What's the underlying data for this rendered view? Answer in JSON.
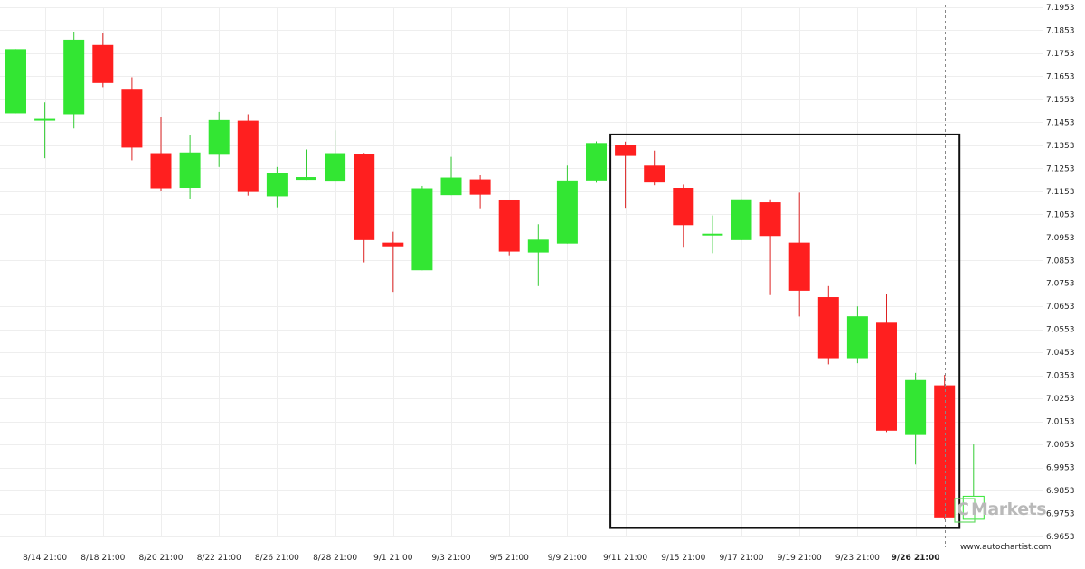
{
  "chart_data": {
    "type": "candlestick",
    "y_ticks": [
      "7.1953",
      "7.1853",
      "7.1753",
      "7.1653",
      "7.1553",
      "7.1453",
      "7.1353",
      "7.1253",
      "7.1153",
      "7.1053",
      "7.0953",
      "7.0853",
      "7.0753",
      "7.0653",
      "7.0553",
      "7.0453",
      "7.0353",
      "7.0253",
      "7.0153",
      "7.0053",
      "6.9953",
      "6.9853",
      "6.9753",
      "6.9653"
    ],
    "ylim": [
      6.9653,
      7.1953
    ],
    "x_tick_labels": [
      "8/14 21:00",
      "8/18 21:00",
      "8/20 21:00",
      "8/22 21:00",
      "8/26 21:00",
      "8/28 21:00",
      "9/1 21:00",
      "9/3 21:00",
      "9/5 21:00",
      "9/9 21:00",
      "9/11 21:00",
      "9/15 21:00",
      "9/17 21:00",
      "9/19 21:00",
      "9/23 21:00",
      "9/26 21:00"
    ],
    "highlighted_x_label": "9/26 21:00",
    "colors": {
      "up": "#33e633",
      "down": "#ff1f1f",
      "wick_up": "#33cc33",
      "wick_down": "#dd2222",
      "grid": "#eeeeee",
      "box": "#111111"
    },
    "candles": [
      {
        "o": 7.1492,
        "h": 7.1771,
        "l": 7.1492,
        "c": 7.1771
      },
      {
        "o": 7.1468,
        "h": 7.154,
        "l": 7.1297,
        "c": 7.1468
      },
      {
        "o": 7.1488,
        "h": 7.1847,
        "l": 7.1426,
        "c": 7.1812
      },
      {
        "o": 7.1789,
        "h": 7.1841,
        "l": 7.1606,
        "c": 7.1624
      },
      {
        "o": 7.1595,
        "h": 7.1649,
        "l": 7.1288,
        "c": 7.1343
      },
      {
        "o": 7.1319,
        "h": 7.1478,
        "l": 7.1154,
        "c": 7.1166
      },
      {
        "o": 7.1168,
        "h": 7.1399,
        "l": 7.1121,
        "c": 7.1322
      },
      {
        "o": 7.1312,
        "h": 7.1498,
        "l": 7.1259,
        "c": 7.1463
      },
      {
        "o": 7.146,
        "h": 7.1488,
        "l": 7.1134,
        "c": 7.115
      },
      {
        "o": 7.1131,
        "h": 7.1259,
        "l": 7.1083,
        "c": 7.1231
      },
      {
        "o": 7.1203,
        "h": 7.1335,
        "l": 7.1203,
        "c": 7.1215
      },
      {
        "o": 7.1199,
        "h": 7.1418,
        "l": 7.1199,
        "c": 7.1319
      },
      {
        "o": 7.1315,
        "h": 7.132,
        "l": 7.0844,
        "c": 7.0941
      },
      {
        "o": 7.093,
        "h": 7.0977,
        "l": 7.0716,
        "c": 7.0914
      },
      {
        "o": 7.081,
        "h": 7.1176,
        "l": 7.081,
        "c": 7.1166
      },
      {
        "o": 7.1136,
        "h": 7.1303,
        "l": 7.1136,
        "c": 7.1213
      },
      {
        "o": 7.1205,
        "h": 7.1223,
        "l": 7.1079,
        "c": 7.1138
      },
      {
        "o": 7.1117,
        "h": 7.1117,
        "l": 7.0875,
        "c": 7.0891
      },
      {
        "o": 7.0887,
        "h": 7.101,
        "l": 7.0741,
        "c": 7.0943
      },
      {
        "o": 7.0926,
        "h": 7.1265,
        "l": 7.0926,
        "c": 7.12
      },
      {
        "o": 7.12,
        "h": 7.137,
        "l": 7.119,
        "c": 7.1363
      },
      {
        "o": 7.1356,
        "h": 7.1369,
        "l": 7.1081,
        "c": 7.1307
      },
      {
        "o": 7.1265,
        "h": 7.133,
        "l": 7.1179,
        "c": 7.1191
      },
      {
        "o": 7.1168,
        "h": 7.1182,
        "l": 7.0908,
        "c": 7.1006
      },
      {
        "o": 7.0969,
        "h": 7.1048,
        "l": 7.0884,
        "c": 7.0969
      },
      {
        "o": 7.0941,
        "h": 7.1118,
        "l": 7.0941,
        "c": 7.1118
      },
      {
        "o": 7.1105,
        "h": 7.1118,
        "l": 7.0702,
        "c": 7.0959
      },
      {
        "o": 7.093,
        "h": 7.1147,
        "l": 7.0609,
        "c": 7.0721
      },
      {
        "o": 7.0693,
        "h": 7.0741,
        "l": 7.0401,
        "c": 7.0428
      },
      {
        "o": 7.0428,
        "h": 7.0653,
        "l": 7.0406,
        "c": 7.061
      },
      {
        "o": 7.0582,
        "h": 7.0705,
        "l": 7.0107,
        "c": 7.0113
      },
      {
        "o": 7.0094,
        "h": 7.0364,
        "l": 6.9966,
        "c": 7.0333
      },
      {
        "o": 7.031,
        "h": 7.0355,
        "l": 6.9727,
        "c": 6.9736
      },
      {
        "o": 6.9728,
        "h": 7.0053,
        "l": 6.9728,
        "c": 6.9828
      }
    ],
    "pattern_box": {
      "from_index": 21,
      "to_index": 32,
      "top": 7.14,
      "bottom": 6.969
    },
    "current_marker_index": 32
  },
  "watermark": {
    "prefix": "C",
    "name": "Markets"
  },
  "source_text": "www.autochartist.com"
}
